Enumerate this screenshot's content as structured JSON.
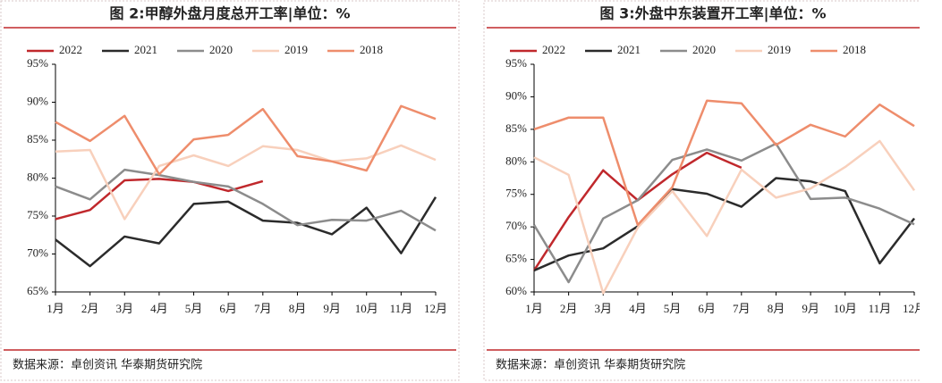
{
  "chart_data": [
    {
      "type": "line",
      "title": "图 2:甲醇外盘月度总开工率|单位：%",
      "categories": [
        "1月",
        "2月",
        "3月",
        "4月",
        "5月",
        "6月",
        "7月",
        "8月",
        "9月",
        "10月",
        "11月",
        "12月"
      ],
      "ylim": [
        65,
        95
      ],
      "yticks": [
        {
          "value": 65,
          "label": "65%"
        },
        {
          "value": 70,
          "label": "70%"
        },
        {
          "value": 75,
          "label": "75%"
        },
        {
          "value": 80,
          "label": "80%"
        },
        {
          "value": 85,
          "label": "85%"
        },
        {
          "value": 90,
          "label": "90%"
        },
        {
          "value": 95,
          "label": "95%"
        }
      ],
      "legend": "top",
      "series": [
        {
          "name": "2022",
          "color": "#c0282c",
          "values": [
            74.6,
            75.8,
            79.7,
            79.9,
            79.5,
            78.3,
            79.6,
            null,
            null,
            null,
            null,
            null
          ]
        },
        {
          "name": "2021",
          "color": "#2b2b2b",
          "values": [
            71.9,
            68.4,
            72.3,
            71.4,
            76.6,
            76.9,
            74.4,
            74.1,
            72.6,
            76.1,
            70.1,
            77.5
          ]
        },
        {
          "name": "2020",
          "color": "#8c8c8c",
          "values": [
            78.9,
            77.2,
            81.1,
            80.4,
            79.5,
            78.9,
            76.6,
            73.8,
            74.5,
            74.4,
            75.7,
            73.1
          ]
        },
        {
          "name": "2019",
          "color": "#f8d0bc",
          "values": [
            83.5,
            83.7,
            74.6,
            81.6,
            83.0,
            81.6,
            84.2,
            83.7,
            82.2,
            82.6,
            84.3,
            82.4
          ]
        },
        {
          "name": "2018",
          "color": "#ee8d6c",
          "values": [
            87.4,
            84.9,
            88.2,
            80.5,
            85.1,
            85.7,
            89.1,
            82.9,
            82.2,
            81.0,
            89.5,
            87.8
          ]
        }
      ],
      "source": "数据来源：卓创资讯  华泰期货研究院"
    },
    {
      "type": "line",
      "title": "图 3:外盘中东装置开工率|单位：%",
      "categories": [
        "1月",
        "2月",
        "3月",
        "4月",
        "5月",
        "6月",
        "7月",
        "8月",
        "9月",
        "10月",
        "11月",
        "12月"
      ],
      "ylim": [
        60,
        95
      ],
      "yticks": [
        {
          "value": 60,
          "label": "60%"
        },
        {
          "value": 65,
          "label": "65%"
        },
        {
          "value": 70,
          "label": "70%"
        },
        {
          "value": 75,
          "label": "75%"
        },
        {
          "value": 80,
          "label": "80%"
        },
        {
          "value": 85,
          "label": "85%"
        },
        {
          "value": 90,
          "label": "90%"
        },
        {
          "value": 95,
          "label": "95%"
        }
      ],
      "legend": "top",
      "series": [
        {
          "name": "2022",
          "color": "#c0282c",
          "values": [
            63.3,
            71.5,
            78.7,
            74.1,
            78.1,
            81.4,
            79.1,
            null,
            null,
            null,
            null,
            null
          ]
        },
        {
          "name": "2021",
          "color": "#2b2b2b",
          "values": [
            63.3,
            65.6,
            66.7,
            70.1,
            75.8,
            75.1,
            73.1,
            77.5,
            77.0,
            75.5,
            64.4,
            71.3
          ]
        },
        {
          "name": "2020",
          "color": "#8c8c8c",
          "values": [
            70.3,
            61.5,
            71.3,
            74.1,
            80.3,
            81.9,
            80.2,
            82.8,
            74.3,
            74.5,
            72.8,
            70.4
          ]
        },
        {
          "name": "2019",
          "color": "#f8d0bc",
          "values": [
            80.7,
            78.0,
            59.8,
            69.9,
            75.5,
            68.6,
            78.8,
            74.5,
            75.9,
            79.2,
            83.2,
            75.6
          ]
        },
        {
          "name": "2018",
          "color": "#ee8d6c",
          "values": [
            85.0,
            86.8,
            86.8,
            70.3,
            76.1,
            89.4,
            89.0,
            82.6,
            85.7,
            83.9,
            88.8,
            85.5
          ]
        }
      ],
      "source": "数据来源：卓创资讯  华泰期货研究院"
    }
  ]
}
